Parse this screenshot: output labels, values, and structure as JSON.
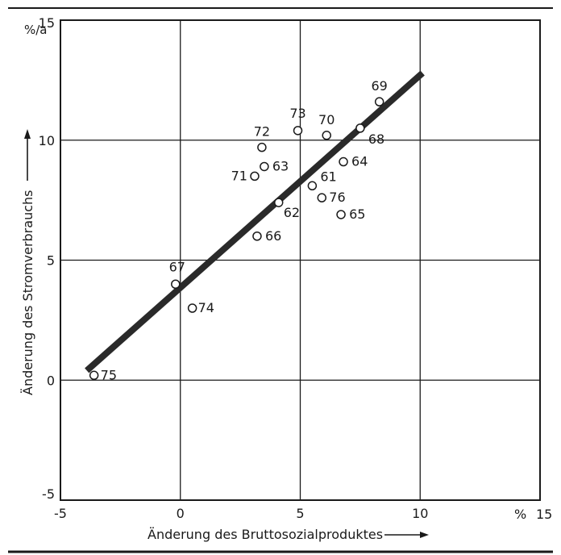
{
  "chart_data": {
    "type": "scatter",
    "title": "",
    "xlabel": "Änderung des Bruttosozialproduktes",
    "ylabel": "Änderung des Stromverbrauchs",
    "x_unit": "%",
    "y_unit": "%/a",
    "xlim": [
      -5,
      15
    ],
    "ylim": [
      -5,
      15
    ],
    "x_ticks": [
      "-5",
      "0",
      "5",
      "10",
      "15"
    ],
    "y_ticks": [
      "-5",
      "0",
      "5",
      "10",
      "15"
    ],
    "grid": true,
    "points": [
      {
        "label": "61",
        "x": 5.5,
        "y": 8.1
      },
      {
        "label": "62",
        "x": 4.1,
        "y": 7.4
      },
      {
        "label": "63",
        "x": 3.5,
        "y": 8.9
      },
      {
        "label": "64",
        "x": 6.8,
        "y": 9.1
      },
      {
        "label": "65",
        "x": 6.7,
        "y": 6.9
      },
      {
        "label": "66",
        "x": 3.2,
        "y": 6.0
      },
      {
        "label": "67",
        "x": -0.2,
        "y": 4.0
      },
      {
        "label": "68",
        "x": 7.5,
        "y": 10.5
      },
      {
        "label": "69",
        "x": 8.3,
        "y": 11.6
      },
      {
        "label": "70",
        "x": 6.1,
        "y": 10.2
      },
      {
        "label": "71",
        "x": 3.1,
        "y": 8.5
      },
      {
        "label": "72",
        "x": 3.4,
        "y": 9.7
      },
      {
        "label": "73",
        "x": 4.9,
        "y": 10.4
      },
      {
        "label": "74",
        "x": 0.5,
        "y": 3.0
      },
      {
        "label": "75",
        "x": -3.6,
        "y": 0.2
      },
      {
        "label": "76",
        "x": 5.9,
        "y": 7.6
      }
    ],
    "trend_line": {
      "x": [
        -3.9,
        10.1
      ],
      "y": [
        0.4,
        12.8
      ]
    }
  }
}
